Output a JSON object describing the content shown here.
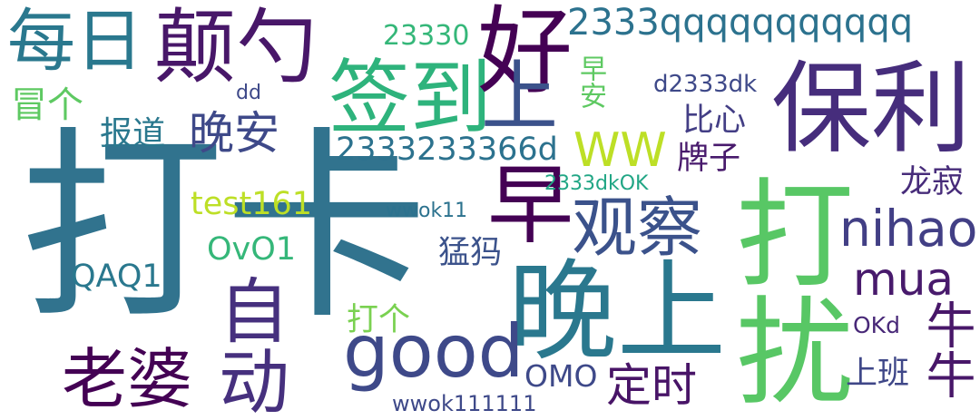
{
  "word_cloud": {
    "words": [
      {
        "text": "打卡",
        "color": "#31738e"
      },
      {
        "text": "保利",
        "color": "#462d7c"
      },
      {
        "text": "晚上",
        "color": "#2a788e"
      },
      {
        "text": "打扰",
        "color": "#58c765"
      },
      {
        "text": "签到",
        "color": "#2eb37c"
      },
      {
        "text": "颠勺",
        "color": "#481769"
      },
      {
        "text": "每日",
        "color": "#2a788e"
      },
      {
        "text": "好",
        "color": "#440154"
      },
      {
        "text": "上",
        "color": "#3b528b"
      },
      {
        "text": "good",
        "color": "#3e4989"
      },
      {
        "text": "老婆",
        "color": "#440154"
      },
      {
        "text": "自动",
        "color": "#46307e"
      },
      {
        "text": "早",
        "color": "#440154"
      },
      {
        "text": "观察",
        "color": "#3b528b"
      },
      {
        "text": "nihao",
        "color": "#423f85"
      },
      {
        "text": "mua",
        "color": "#481a6c"
      },
      {
        "text": "2333qqqqqqqqqqq",
        "color": "#2c728e"
      },
      {
        "text": "WW",
        "color": "#bddf26"
      },
      {
        "text": "2333233366d",
        "color": "#2c728e"
      },
      {
        "text": "晚安",
        "color": "#3e4989"
      },
      {
        "text": "牛牛",
        "color": "#481769"
      },
      {
        "text": "定时",
        "color": "#481467"
      },
      {
        "text": "冒个",
        "color": "#5ec962"
      },
      {
        "text": "报道",
        "color": "#2a788e"
      },
      {
        "text": "test161",
        "color": "#bddf26"
      },
      {
        "text": "OvO1",
        "color": "#35b779"
      },
      {
        "text": "QAQ1",
        "color": "#2a788e"
      },
      {
        "text": "比心",
        "color": "#433e85"
      },
      {
        "text": "牌子",
        "color": "#481a6c"
      },
      {
        "text": "龙寂",
        "color": "#472c7a"
      },
      {
        "text": "上班",
        "color": "#3f4788"
      },
      {
        "text": "猛犸",
        "color": "#3b528b"
      },
      {
        "text": "打个",
        "color": "#7ad151"
      },
      {
        "text": "OMO",
        "color": "#3e4989"
      },
      {
        "text": "23330",
        "color": "#35b779"
      },
      {
        "text": "早安",
        "color": "#5ec962"
      },
      {
        "text": "d2333dk",
        "color": "#3e4989"
      },
      {
        "text": "dd",
        "color": "#3e4989"
      },
      {
        "text": "2333dkOK",
        "color": "#21a685"
      },
      {
        "text": "wwok11",
        "color": "#2c728e"
      },
      {
        "text": "wwok111111",
        "color": "#3e4989"
      },
      {
        "text": "OKd",
        "color": "#482878"
      }
    ]
  }
}
